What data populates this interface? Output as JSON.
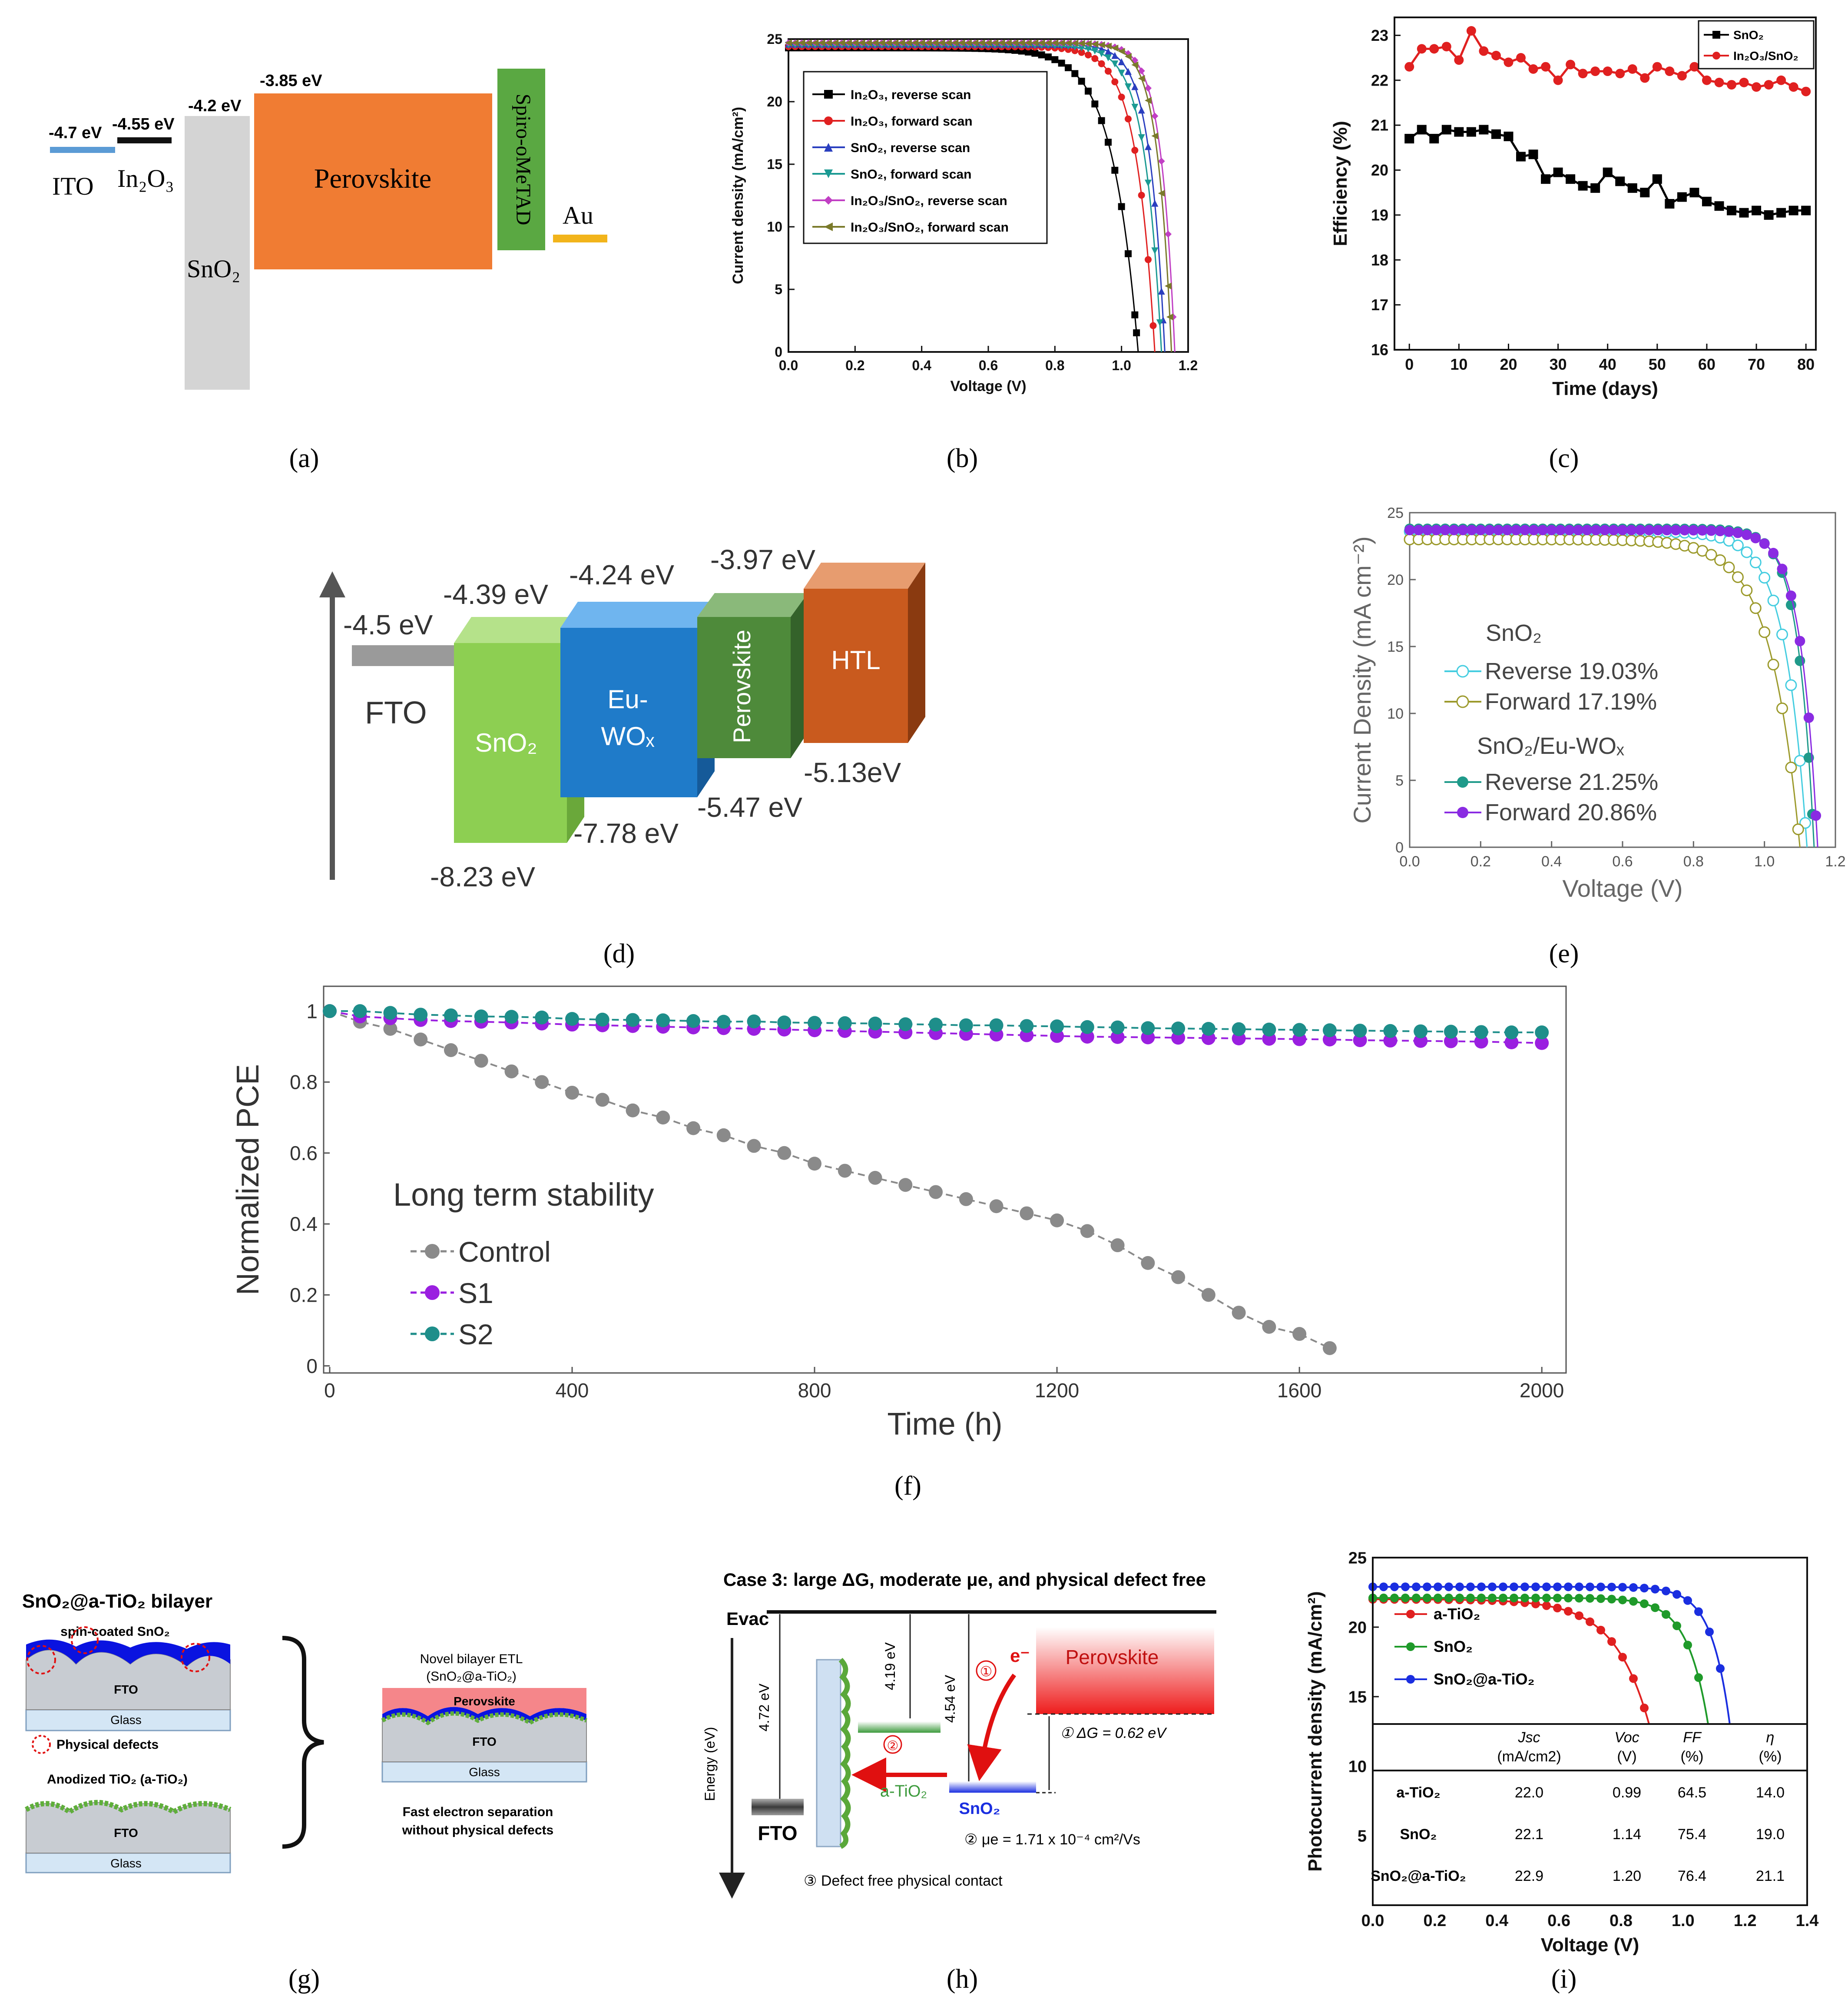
{
  "panel_labels": {
    "a": "(a)",
    "b": "(b)",
    "c": "(c)",
    "d": "(d)",
    "e": "(e)",
    "f": "(f)",
    "g": "(g)",
    "h": "(h)",
    "i": "(i)"
  },
  "panel_a": {
    "energies": {
      "ito": "-4.7 eV",
      "in2o3": "-4.55 eV",
      "sno2": "-4.2 eV",
      "perovskite": "-3.85 eV"
    },
    "labels": {
      "ito": "ITO",
      "in2o3": "In₂O₃",
      "sno2": "SnO₂",
      "perovskite": "Perovskite",
      "spiro": "Spiro-oMeTAD",
      "au": "Au"
    },
    "colors": {
      "ito": "#5b9bd5",
      "in2o3": "#111111",
      "sno2": "#d4d4d4",
      "perovskite": "#f07c33",
      "spiro": "#5aa842",
      "au": "#f2b41b"
    }
  },
  "panel_d": {
    "energies": {
      "fto": "-4.5 eV",
      "sno2_top": "-4.39 eV",
      "wox_top": "-4.24 eV",
      "pvk_top": "-3.97 eV",
      "htl_bottom": "-5.13eV",
      "pvk_bottom": "-5.47 eV",
      "wox_bottom": "-7.78 eV",
      "sno2_bottom": "-8.23 eV"
    },
    "labels": {
      "fto": "FTO",
      "sno2": "SnO₂",
      "wox_1": "Eu-",
      "wox_2": "WOₓ",
      "perovskite": "Perovskite",
      "htl": "HTL"
    },
    "colors": {
      "sno2": "#8dcf52",
      "wox": "#1f7bc9",
      "perovskite": "#4e8a3a",
      "htl": "#c95a1e",
      "fto": "#9a9a9a"
    }
  },
  "panel_g": {
    "title": "SnO₂@a-TiO₂ bilayer",
    "spin_label": "spin-coated SnO₂",
    "fto": "FTO",
    "glass": "Glass",
    "defects": "Physical defects",
    "anodized": "Anodized TiO₂ (a-TiO₂)",
    "novel_1": "Novel bilayer ETL",
    "novel_2": "(SnO₂@a-TiO₂)",
    "perovskite": "Perovskite",
    "fast_1": "Fast electron separation",
    "fast_2": "without physical defects"
  },
  "panel_h": {
    "title": "Case 3: large ΔG, moderate μe, and physical defect free",
    "evac": "Evac",
    "energy_axis": "Energy (eV)",
    "e472": "4.72 eV",
    "e419": "4.19 eV",
    "e454": "4.54 eV",
    "perovskite": "Perovskite",
    "circle1": "①",
    "electron": "e⁻",
    "circle2": "②",
    "dg": "① ΔG = 0.62 eV",
    "atio2": "a-TiO₂",
    "sno2": "SnO₂",
    "mobility": "② μe = 1.71 x 10⁻⁴ cm²/Vs",
    "fto": "FTO",
    "defect": "③ Defect free physical contact"
  },
  "chart_data": [
    {
      "id": "b",
      "type": "line",
      "xlabel": "Voltage (V)",
      "ylabel": "Current density (mA/cm²)",
      "xlim": [
        0,
        1.2
      ],
      "ylim": [
        0,
        25
      ],
      "xticks": [
        0.0,
        0.2,
        0.4,
        0.6,
        0.8,
        1.0,
        1.2
      ],
      "yticks": [
        0,
        5,
        10,
        15,
        20,
        25
      ],
      "legend": "top-left",
      "series": [
        {
          "name": "In₂O₃, reverse scan",
          "color": "#000000",
          "marker": "square",
          "jsc": 24.3,
          "voc": 1.05,
          "k": 13
        },
        {
          "name": "In₂O₃, forward scan",
          "color": "#e02020",
          "marker": "circle",
          "jsc": 24.4,
          "voc": 1.1,
          "k": 18
        },
        {
          "name": "SnO₂, reverse scan",
          "color": "#2a3fbf",
          "marker": "triangle",
          "jsc": 24.6,
          "voc": 1.13,
          "k": 22
        },
        {
          "name": "SnO₂, forward scan",
          "color": "#1b9a93",
          "marker": "triangle-down",
          "jsc": 24.5,
          "voc": 1.12,
          "k": 20
        },
        {
          "name": "In₂O₃/SnO₂, reverse scan",
          "color": "#c13fc4",
          "marker": "diamond",
          "jsc": 24.7,
          "voc": 1.16,
          "k": 24
        },
        {
          "name": "In₂O₃/SnO₂, forward scan",
          "color": "#7a7a2a",
          "marker": "triangle-left",
          "jsc": 24.7,
          "voc": 1.15,
          "k": 24
        }
      ]
    },
    {
      "id": "c",
      "type": "line",
      "xlabel": "Time (days)",
      "ylabel": "Efficiency (%)",
      "xlim": [
        -3,
        82
      ],
      "ylim": [
        16,
        23.4
      ],
      "xticks": [
        0,
        10,
        20,
        30,
        40,
        50,
        60,
        70,
        80
      ],
      "yticks": [
        16,
        17,
        18,
        19,
        20,
        21,
        22,
        23
      ],
      "legend": "top-right",
      "series": [
        {
          "name": "SnO₂",
          "color": "#000000",
          "marker": "square",
          "x": [
            0,
            2.5,
            5,
            7.5,
            10,
            12.5,
            15,
            17.5,
            20,
            22.5,
            25,
            27.5,
            30,
            32.5,
            35,
            37.5,
            40,
            42.5,
            45,
            47.5,
            50,
            52.5,
            55,
            57.5,
            60,
            62.5,
            65,
            67.5,
            70,
            72.5,
            75,
            77.5,
            80
          ],
          "y": [
            20.7,
            20.9,
            20.7,
            20.9,
            20.85,
            20.85,
            20.9,
            20.8,
            20.75,
            20.3,
            20.35,
            19.8,
            19.95,
            19.8,
            19.65,
            19.6,
            19.95,
            19.75,
            19.6,
            19.5,
            19.8,
            19.25,
            19.4,
            19.5,
            19.3,
            19.2,
            19.1,
            19.05,
            19.1,
            19.0,
            19.05,
            19.1,
            19.1
          ]
        },
        {
          "name": "In₂O₃/SnO₂",
          "color": "#e02020",
          "marker": "circle",
          "x": [
            0,
            2.5,
            5,
            7.5,
            10,
            12.5,
            15,
            17.5,
            20,
            22.5,
            25,
            27.5,
            30,
            32.5,
            35,
            37.5,
            40,
            42.5,
            45,
            47.5,
            50,
            52.5,
            55,
            57.5,
            60,
            62.5,
            65,
            67.5,
            70,
            72.5,
            75,
            77.5,
            80
          ],
          "y": [
            22.3,
            22.7,
            22.7,
            22.75,
            22.45,
            23.1,
            22.65,
            22.55,
            22.4,
            22.5,
            22.25,
            22.3,
            22.0,
            22.35,
            22.15,
            22.2,
            22.2,
            22.15,
            22.25,
            22.05,
            22.3,
            22.2,
            22.1,
            22.3,
            22.0,
            21.95,
            21.9,
            21.95,
            21.85,
            21.9,
            22.0,
            21.85,
            21.75
          ]
        }
      ]
    },
    {
      "id": "e",
      "type": "line",
      "xlabel": "Voltage (V)",
      "ylabel": "Current Density (mA cm⁻²)",
      "xlim": [
        0,
        1.2
      ],
      "ylim": [
        0,
        25
      ],
      "xticks": [
        0.0,
        0.2,
        0.4,
        0.6,
        0.8,
        1.0,
        1.2
      ],
      "yticks": [
        0,
        5,
        10,
        15,
        20,
        25
      ],
      "legend_groups": [
        "SnO₂",
        "SnO₂/Eu-WOₓ"
      ],
      "series": [
        {
          "name": "Reverse 19.03%",
          "group": 0,
          "color": "#45cde0",
          "marker": "open-circle",
          "jsc": 23.6,
          "voc": 1.12,
          "k": 16
        },
        {
          "name": "Forward 17.19%",
          "group": 0,
          "color": "#9c9a2c",
          "marker": "open-circle",
          "jsc": 23.0,
          "voc": 1.1,
          "k": 12
        },
        {
          "name": "Reverse 21.25%",
          "group": 1,
          "color": "#1f9a8a",
          "marker": "circle",
          "jsc": 23.8,
          "voc": 1.14,
          "k": 22
        },
        {
          "name": "Forward 20.86%",
          "group": 1,
          "color": "#8a2be2",
          "marker": "circle",
          "jsc": 23.7,
          "voc": 1.15,
          "k": 21
        }
      ]
    },
    {
      "id": "f",
      "type": "line",
      "title": "Long term stability",
      "xlabel": "Time (h)",
      "ylabel": "Normalized PCE",
      "xlim": [
        -10,
        2040
      ],
      "ylim": [
        -0.02,
        1.07
      ],
      "xticks": [
        0,
        400,
        800,
        1200,
        1600,
        2000
      ],
      "yticks": [
        0.0,
        0.2,
        0.4,
        0.6,
        0.8,
        1.0
      ],
      "series": [
        {
          "name": "Control",
          "color": "#8a8a8a",
          "x": [
            0,
            50,
            100,
            150,
            200,
            250,
            300,
            350,
            400,
            450,
            500,
            550,
            600,
            650,
            700,
            750,
            800,
            850,
            900,
            950,
            1000,
            1050,
            1100,
            1150,
            1200,
            1250,
            1300,
            1350,
            1400,
            1450,
            1500,
            1550,
            1600,
            1650
          ],
          "y": [
            1.0,
            0.97,
            0.95,
            0.92,
            0.89,
            0.86,
            0.83,
            0.8,
            0.77,
            0.75,
            0.72,
            0.7,
            0.67,
            0.65,
            0.62,
            0.6,
            0.57,
            0.55,
            0.53,
            0.51,
            0.49,
            0.47,
            0.45,
            0.43,
            0.41,
            0.38,
            0.34,
            0.29,
            0.25,
            0.2,
            0.15,
            0.11,
            0.09,
            0.05
          ]
        },
        {
          "name": "S1",
          "color": "#9a1fe0",
          "x": [
            0,
            50,
            100,
            150,
            200,
            250,
            300,
            350,
            400,
            450,
            500,
            550,
            600,
            650,
            700,
            750,
            800,
            850,
            900,
            950,
            1000,
            1050,
            1100,
            1150,
            1200,
            1250,
            1300,
            1350,
            1400,
            1450,
            1500,
            1550,
            1600,
            1650,
            1700,
            1750,
            1800,
            1850,
            1900,
            1950,
            2000
          ],
          "y": [
            1.0,
            0.985,
            0.98,
            0.975,
            0.972,
            0.97,
            0.968,
            0.965,
            0.962,
            0.96,
            0.958,
            0.956,
            0.954,
            0.952,
            0.95,
            0.948,
            0.946,
            0.944,
            0.942,
            0.94,
            0.938,
            0.936,
            0.934,
            0.932,
            0.93,
            0.928,
            0.927,
            0.926,
            0.925,
            0.924,
            0.923,
            0.922,
            0.921,
            0.92,
            0.918,
            0.917,
            0.916,
            0.915,
            0.914,
            0.912,
            0.91
          ]
        },
        {
          "name": "S2",
          "color": "#1e8e8a",
          "x": [
            0,
            50,
            100,
            150,
            200,
            250,
            300,
            350,
            400,
            450,
            500,
            550,
            600,
            650,
            700,
            750,
            800,
            850,
            900,
            950,
            1000,
            1050,
            1100,
            1150,
            1200,
            1250,
            1300,
            1350,
            1400,
            1450,
            1500,
            1550,
            1600,
            1650,
            1700,
            1750,
            1800,
            1850,
            1900,
            1950,
            2000
          ],
          "y": [
            1.0,
            1.0,
            0.995,
            0.99,
            0.988,
            0.985,
            0.984,
            0.982,
            0.978,
            0.976,
            0.975,
            0.974,
            0.972,
            0.97,
            0.971,
            0.968,
            0.967,
            0.966,
            0.965,
            0.963,
            0.962,
            0.96,
            0.96,
            0.958,
            0.957,
            0.955,
            0.954,
            0.952,
            0.951,
            0.95,
            0.949,
            0.948,
            0.947,
            0.946,
            0.945,
            0.944,
            0.943,
            0.942,
            0.941,
            0.94,
            0.94
          ]
        }
      ]
    },
    {
      "id": "i",
      "type": "line",
      "xlabel": "Voltage (V)",
      "ylabel": "Photocurrent density (mA/cm²)",
      "xlim": [
        0,
        1.4
      ],
      "ylim": [
        0,
        25
      ],
      "xticks": [
        0.0,
        0.2,
        0.4,
        0.6,
        0.8,
        1.0,
        1.2,
        1.4
      ],
      "yticks": [
        5,
        10,
        15,
        20,
        25
      ],
      "series": [
        {
          "name": "a-TiO₂",
          "color": "#e02020",
          "marker": "circle",
          "jsc": 22.0,
          "voc": 0.99,
          "k": 9
        },
        {
          "name": "SnO₂",
          "color": "#1f9a2a",
          "marker": "circle",
          "jsc": 22.1,
          "voc": 1.14,
          "k": 15
        },
        {
          "name": "SnO₂@a-TiO₂",
          "color": "#1a2ee0",
          "marker": "circle",
          "jsc": 22.9,
          "voc": 1.2,
          "k": 17
        }
      ],
      "table": {
        "headers": [
          "",
          "Jsc\n(mA/cm2)",
          "Voc\n(V)",
          "FF\n(%)",
          "η\n(%)"
        ],
        "rows": [
          [
            "a-TiO₂",
            "22.0",
            "0.99",
            "64.5",
            "14.0"
          ],
          [
            "SnO₂",
            "22.1",
            "1.14",
            "75.4",
            "19.0"
          ],
          [
            "SnO₂@a-TiO₂",
            "22.9",
            "1.20",
            "76.4",
            "21.1"
          ]
        ]
      }
    }
  ]
}
